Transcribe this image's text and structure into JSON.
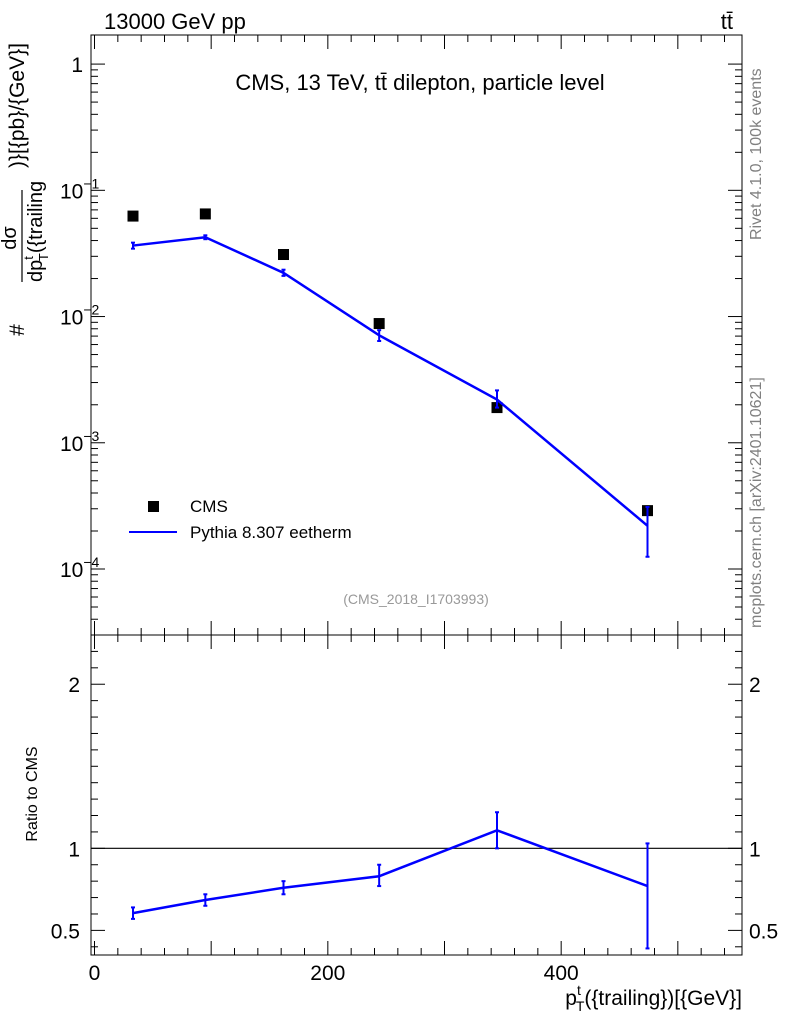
{
  "header": {
    "left": "13000 GeV pp",
    "right": "tt̄"
  },
  "side_labels": {
    "rivet": "Rivet 4.1.0,  100k events",
    "source": "mcplots.cern.ch [arXiv:2401.10621]"
  },
  "chart_data": [
    {
      "panel": "main",
      "type": "line",
      "title": "CMS, 13 TeV, tt̄ dilepton, particle level",
      "analysis_id": "(CMS_2018_I1703993)",
      "xlabel": "p_T^t({trailing})[{GeV}]",
      "ylabel": "# dσ / dp_T^t({trailing})}[{pb}/{GeV}]",
      "xlim": [
        -3,
        555
      ],
      "ylim": [
        3e-05,
        1.7
      ],
      "yscale": "log",
      "y_ticks": [
        {
          "value": 1,
          "label": "1"
        },
        {
          "value": 0.1,
          "label": "10",
          "exp": "−1"
        },
        {
          "value": 0.01,
          "label": "10",
          "exp": "−2"
        },
        {
          "value": 0.001,
          "label": "10",
          "exp": "−3"
        },
        {
          "value": 0.0001,
          "label": "10",
          "exp": "−4"
        }
      ],
      "legend_position": "bottom-left",
      "series": [
        {
          "name": "CMS",
          "style": "markers",
          "color": "#000000",
          "x": [
            33,
            95,
            162,
            244,
            345,
            474
          ],
          "y": [
            0.0625,
            0.065,
            0.031,
            0.0088,
            0.0019,
            0.00029
          ]
        },
        {
          "name": "Pythia 8.307 eetherm",
          "style": "line",
          "color": "#0000ff",
          "x": [
            33,
            95,
            162,
            244,
            345,
            474
          ],
          "y": [
            0.0365,
            0.0425,
            0.0222,
            0.0071,
            0.0022,
            0.00022
          ],
          "err_low": [
            0.0345,
            0.041,
            0.021,
            0.0064,
            0.0019,
            0.000125
          ],
          "err_high": [
            0.0385,
            0.044,
            0.0235,
            0.0078,
            0.0026,
            0.00031
          ]
        }
      ]
    },
    {
      "panel": "ratio",
      "type": "line",
      "xlabel": "p_T^t({trailing})[{GeV}]",
      "ylabel": "Ratio to CMS",
      "xlim": [
        -3,
        555
      ],
      "ylim": [
        0.35,
        2.3
      ],
      "reference_line": 1,
      "x_ticks": [
        0,
        200,
        400
      ],
      "y_ticks": [
        0.5,
        1,
        2
      ],
      "series": [
        {
          "name": "Pythia 8.307 eetherm / CMS",
          "color": "#0000ff",
          "x": [
            33,
            95,
            162,
            244,
            345,
            474
          ],
          "y": [
            0.605,
            0.685,
            0.76,
            0.83,
            1.11,
            0.77
          ],
          "err_low": [
            0.57,
            0.65,
            0.72,
            0.77,
            1.0,
            0.39
          ],
          "err_high": [
            0.64,
            0.72,
            0.8,
            0.9,
            1.22,
            1.03
          ]
        }
      ]
    }
  ]
}
